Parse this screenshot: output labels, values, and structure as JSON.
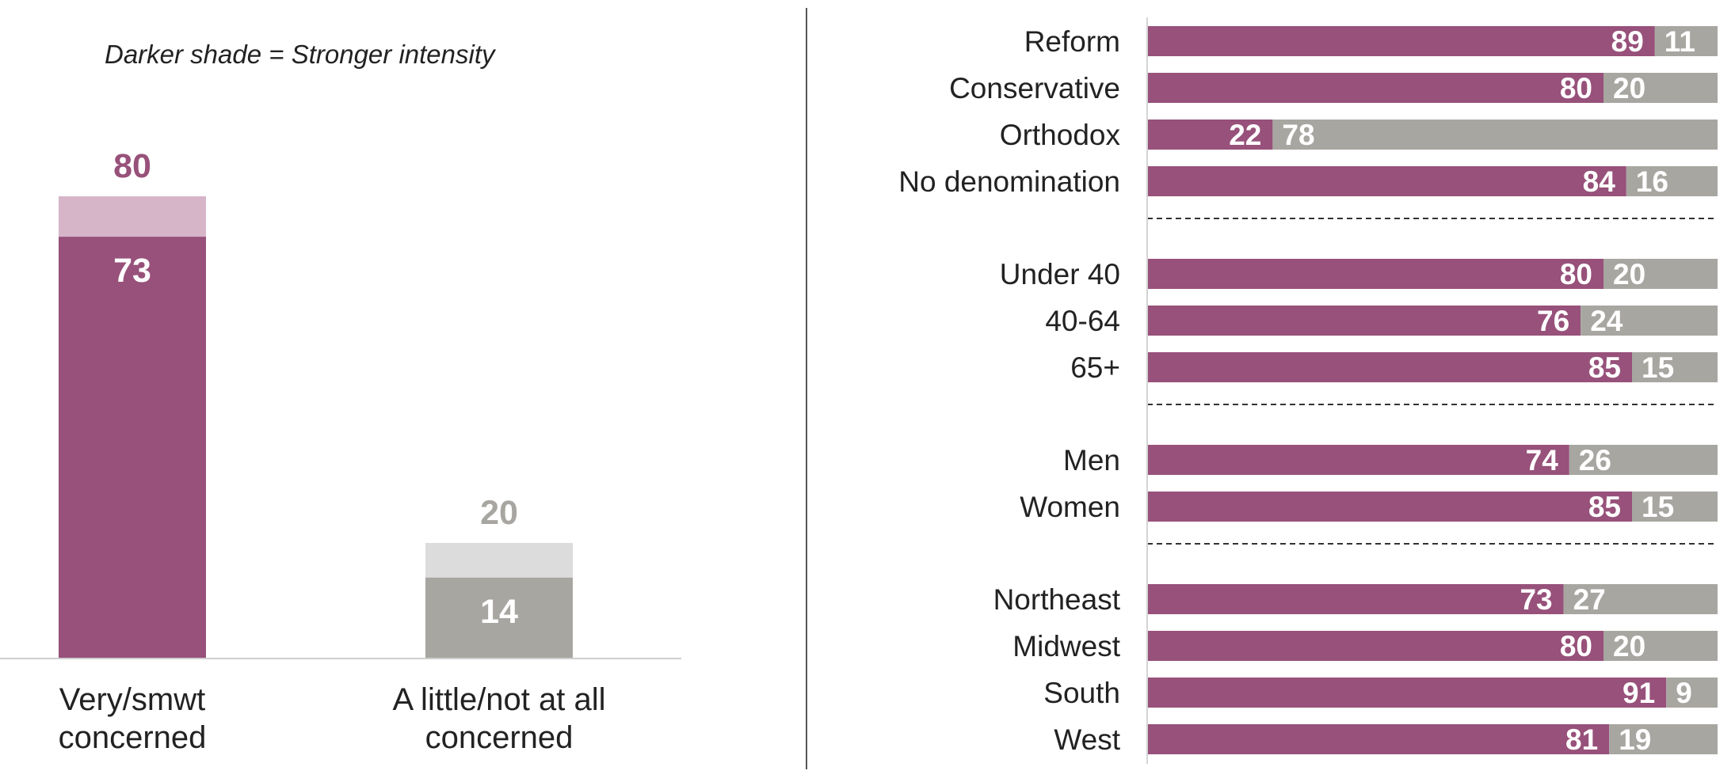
{
  "colors": {
    "accent": "#97517a",
    "accent_light": "#d6b5c9",
    "gray": "#a8a6a1",
    "gray_light": "#dcdcdc",
    "total_accent": "#97517a",
    "total_gray": "#a8a6a1"
  },
  "chart_data": [
    {
      "type": "bar",
      "note": "Darker shade = Stronger intensity",
      "categories": [
        "Very/smwt\nconcerned",
        "A little/not at all\nconcerned"
      ],
      "totals": [
        80,
        20
      ],
      "strong": [
        73,
        14
      ],
      "ylim": [
        0,
        100
      ]
    },
    {
      "type": "bar",
      "orientation": "horizontal",
      "stacked": true,
      "xlim": [
        0,
        100
      ],
      "groups": [
        {
          "rows": [
            {
              "label": "Reform",
              "a": 89,
              "b": 11
            },
            {
              "label": "Conservative",
              "a": 80,
              "b": 20
            },
            {
              "label": "Orthodox",
              "a": 22,
              "b": 78
            },
            {
              "label": "No denomination",
              "a": 84,
              "b": 16
            }
          ]
        },
        {
          "rows": [
            {
              "label": "Under 40",
              "a": 80,
              "b": 20
            },
            {
              "label": "40-64",
              "a": 76,
              "b": 24
            },
            {
              "label": "65+",
              "a": 85,
              "b": 15
            }
          ]
        },
        {
          "rows": [
            {
              "label": "Men",
              "a": 74,
              "b": 26
            },
            {
              "label": "Women",
              "a": 85,
              "b": 15
            }
          ]
        },
        {
          "rows": [
            {
              "label": "Northeast",
              "a": 73,
              "b": 27
            },
            {
              "label": "Midwest",
              "a": 80,
              "b": 20
            },
            {
              "label": "South",
              "a": 91,
              "b": 9
            },
            {
              "label": "West",
              "a": 81,
              "b": 19
            }
          ]
        }
      ]
    }
  ]
}
